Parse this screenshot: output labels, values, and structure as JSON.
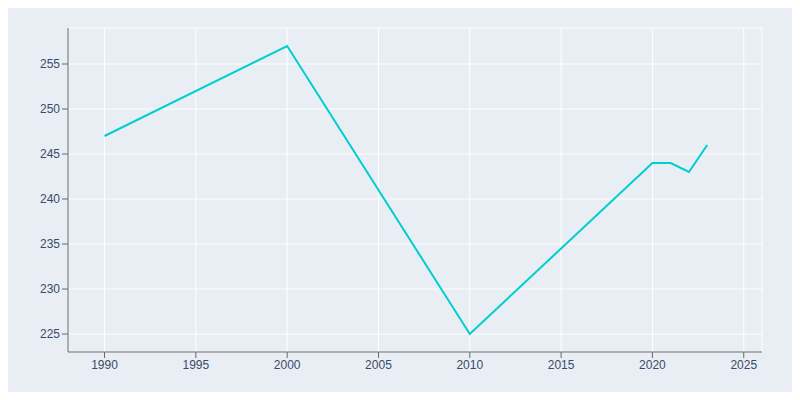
{
  "chart_data": {
    "type": "line",
    "x": [
      1990,
      2000,
      2010,
      2020,
      2021,
      2022,
      2023
    ],
    "values": [
      247,
      257,
      225,
      244,
      244,
      243,
      246
    ],
    "color": "#00CED1",
    "xlim": [
      1988,
      2026
    ],
    "ylim": [
      223,
      259
    ],
    "xticks": [
      1990,
      1995,
      2000,
      2005,
      2010,
      2015,
      2020,
      2025
    ],
    "yticks": [
      225,
      230,
      235,
      240,
      245,
      250,
      255
    ],
    "grid": true
  }
}
